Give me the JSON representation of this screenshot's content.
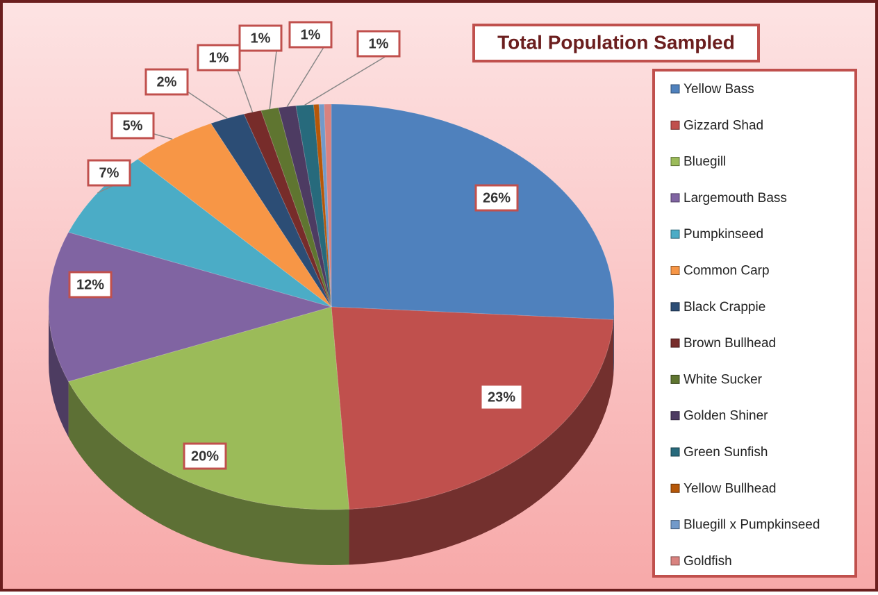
{
  "chart_data": {
    "type": "pie",
    "title": "Total Population Sampled",
    "categories": [
      "Yellow Bass",
      "Gizzard Shad",
      "Bluegill",
      "Largemouth Bass",
      "Pumpkinseed",
      "Common Carp",
      "Black Crappie",
      "Brown Bullhead",
      "White Sucker",
      "Golden Shiner",
      "Green Sunfish",
      "Yellow Bullhead",
      "Bluegill x Pumpkinseed",
      "Goldfish"
    ],
    "values": [
      26,
      23,
      20,
      12,
      7,
      5,
      2,
      1,
      1,
      1,
      1,
      0.3,
      0.3,
      0.4
    ],
    "value_labels": [
      "26%",
      "23%",
      "20%",
      "12%",
      "7%",
      "5%",
      "2%",
      "1%",
      "1%",
      "1%",
      "1%",
      null,
      null,
      null
    ],
    "colors": [
      "#4f81bd",
      "#c0504d",
      "#9bbb59",
      "#8064a2",
      "#4bacc6",
      "#f79646",
      "#2c4d75",
      "#772c2a",
      "#5f7530",
      "#4d3b62",
      "#276a7c",
      "#b65708",
      "#729aca",
      "#d9827f"
    ],
    "legend": "right"
  }
}
